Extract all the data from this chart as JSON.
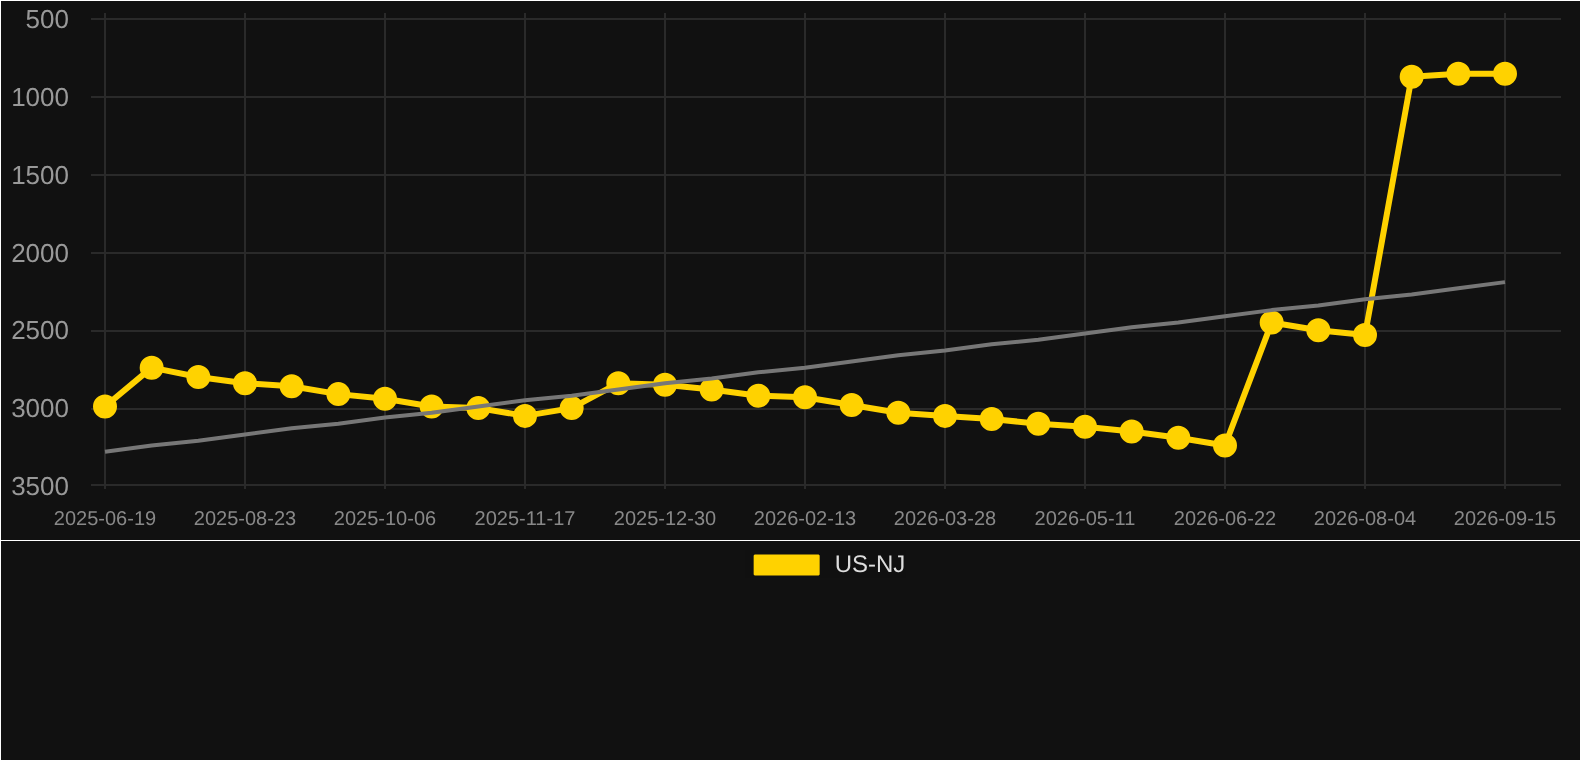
{
  "chart_data": {
    "type": "line",
    "categories": [
      "2025-06-19",
      null,
      null,
      "2025-08-23",
      null,
      null,
      "2025-10-06",
      null,
      null,
      "2025-11-17",
      null,
      null,
      "2025-12-30",
      null,
      null,
      "2026-02-13",
      null,
      null,
      "2026-03-28",
      null,
      null,
      "2026-05-11",
      null,
      null,
      "2026-06-22",
      null,
      null,
      "2026-08-04",
      null,
      null,
      "2026-09-15"
    ],
    "series": [
      {
        "name": "US-NJ",
        "color": "#ffd200",
        "marker": "circle",
        "values": [
          2990,
          2740,
          2800,
          2840,
          2860,
          2910,
          2940,
          2990,
          3000,
          3050,
          3000,
          2840,
          2850,
          2880,
          2920,
          2930,
          2980,
          3030,
          3050,
          3070,
          3100,
          3120,
          3150,
          3190,
          3240,
          2450,
          2500,
          2530,
          870,
          850,
          850
        ]
      },
      {
        "type": "line",
        "color": "#777777",
        "marker": "none",
        "values": [
          3280,
          3240,
          3210,
          3170,
          3130,
          3100,
          3060,
          3030,
          2990,
          2950,
          2920,
          2880,
          2840,
          2810,
          2770,
          2740,
          2700,
          2660,
          2630,
          2590,
          2560,
          2520,
          2480,
          2450,
          2410,
          2370,
          2340,
          2300,
          2270,
          2230,
          2190
        ]
      }
    ],
    "ylim": [
      3520,
      460
    ],
    "yticks": [
      500,
      1000,
      1500,
      2000,
      2500,
      3000,
      3500
    ],
    "grid": true,
    "legend": "bottom"
  }
}
